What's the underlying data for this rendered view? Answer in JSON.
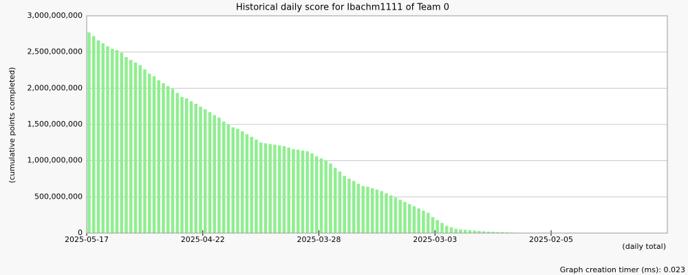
{
  "chart_data": {
    "type": "bar",
    "title": "Historical daily score for Ibachm1111 of Team 0",
    "y_label": "(cumulative points completed)",
    "x_label": "(daily total)",
    "footer": "Graph creation timer (ms): 0.023",
    "color": "#90ee90",
    "grid": true,
    "categories": [
      "2025-05-17",
      null,
      null,
      null,
      null,
      null,
      null,
      null,
      null,
      null,
      null,
      null,
      null,
      null,
      null,
      null,
      null,
      null,
      null,
      null,
      null,
      null,
      null,
      null,
      null,
      "2025-04-22",
      null,
      null,
      null,
      null,
      null,
      null,
      null,
      null,
      null,
      null,
      null,
      null,
      null,
      null,
      null,
      null,
      null,
      null,
      null,
      null,
      null,
      null,
      null,
      null,
      "2025-03-28",
      null,
      null,
      null,
      null,
      null,
      null,
      null,
      null,
      null,
      null,
      null,
      null,
      null,
      null,
      null,
      null,
      null,
      null,
      null,
      null,
      null,
      null,
      null,
      null,
      "2025-03-03",
      null,
      null,
      null,
      null,
      null,
      null,
      null,
      null,
      null,
      null,
      null,
      null,
      null,
      null,
      null,
      null,
      null,
      null,
      null,
      null,
      null,
      null,
      null,
      null,
      "2025-02-05",
      null,
      null,
      null,
      null,
      null,
      null,
      null,
      null,
      null,
      null,
      null,
      null,
      null,
      null,
      null,
      null,
      null,
      null,
      null,
      null,
      null,
      null,
      null,
      null
    ],
    "values": [
      2770000000,
      2720000000,
      2660000000,
      2620000000,
      2580000000,
      2545000000,
      2525000000,
      2490000000,
      2430000000,
      2390000000,
      2355000000,
      2320000000,
      2260000000,
      2200000000,
      2165000000,
      2110000000,
      2070000000,
      2030000000,
      1990000000,
      1935000000,
      1880000000,
      1860000000,
      1820000000,
      1785000000,
      1745000000,
      1710000000,
      1670000000,
      1630000000,
      1595000000,
      1540000000,
      1500000000,
      1460000000,
      1440000000,
      1405000000,
      1365000000,
      1330000000,
      1290000000,
      1250000000,
      1240000000,
      1230000000,
      1220000000,
      1210000000,
      1200000000,
      1180000000,
      1160000000,
      1150000000,
      1140000000,
      1130000000,
      1100000000,
      1060000000,
      1030000000,
      1000000000,
      960000000,
      900000000,
      850000000,
      790000000,
      750000000,
      720000000,
      680000000,
      650000000,
      640000000,
      620000000,
      600000000,
      580000000,
      550000000,
      520000000,
      490000000,
      460000000,
      430000000,
      400000000,
      370000000,
      340000000,
      310000000,
      280000000,
      220000000,
      180000000,
      140000000,
      100000000,
      80000000,
      60000000,
      50000000,
      45000000,
      40000000,
      35000000,
      30000000,
      25000000,
      20000000,
      17000000,
      14000000,
      12000000,
      10000000,
      8000000,
      6000000,
      5000000,
      4000000,
      3000000,
      2000000,
      2000000,
      1000000,
      1000000,
      null,
      null,
      null,
      null,
      null,
      null,
      null,
      null,
      null,
      null,
      null,
      null,
      null,
      null,
      null,
      null,
      null,
      null,
      null,
      null,
      null,
      null,
      null,
      null,
      null
    ],
    "ylim": [
      0,
      3000000000
    ],
    "yticks": [
      0,
      {
        "value": 500000000,
        "label": "500,000,000"
      },
      {
        "value": 1000000000,
        "label": "1,000,000,000"
      },
      {
        "value": 1500000000,
        "label": "1,500,000,000"
      },
      {
        "value": 2000000000,
        "label": "2,000,000,000"
      },
      {
        "value": 2500000000,
        "label": "2,500,000,000"
      },
      {
        "value": 3000000000,
        "label": "3,000,000,000"
      }
    ]
  }
}
